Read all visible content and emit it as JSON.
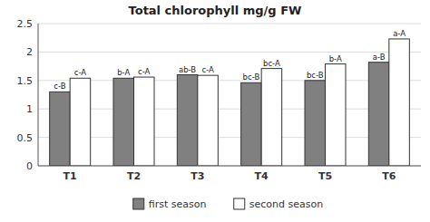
{
  "chart_data": {
    "type": "bar",
    "title": "Total chlorophyll  mg/g FW",
    "categories": [
      "T1",
      "T2",
      "T3",
      "T4",
      "T5",
      "T6"
    ],
    "series": [
      {
        "name": "first season",
        "color": "#808080",
        "values": [
          1.3,
          1.54,
          1.6,
          1.46,
          1.5,
          1.82
        ],
        "annotations": [
          "c-B",
          "b-A",
          "ab-B",
          "bc-B",
          "bc-B",
          "a-B"
        ]
      },
      {
        "name": "second season",
        "color": "#ffffff",
        "values": [
          1.54,
          1.56,
          1.59,
          1.71,
          1.79,
          2.23
        ],
        "annotations": [
          "c-A",
          "c-A",
          "c-A",
          "bc-A",
          "b-A",
          "a-A"
        ]
      }
    ],
    "ylim": [
      0,
      2.5
    ],
    "yticks": [
      0,
      0.5,
      1,
      1.5,
      2,
      2.5
    ],
    "grid": true,
    "legend": "bottom"
  }
}
